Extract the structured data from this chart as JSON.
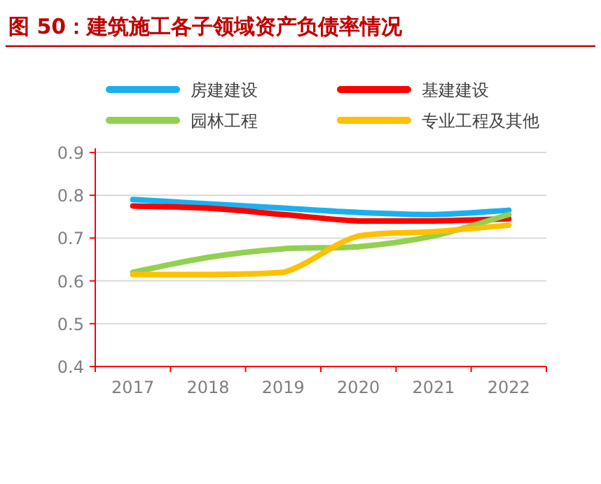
{
  "chart_data": {
    "type": "line",
    "title": "图 50：建筑施工各子领域资产负债率情况",
    "categories": [
      "2017",
      "2018",
      "2019",
      "2020",
      "2021",
      "2022"
    ],
    "series": [
      {
        "name": "房建建设",
        "color": "#1ab0f0",
        "values": [
          0.79,
          0.78,
          0.77,
          0.76,
          0.755,
          0.765
        ]
      },
      {
        "name": "基建建设",
        "color": "#ff0000",
        "values": [
          0.775,
          0.77,
          0.755,
          0.74,
          0.74,
          0.745
        ]
      },
      {
        "name": "园林工程",
        "color": "#92d050",
        "values": [
          0.62,
          0.655,
          0.675,
          0.68,
          0.705,
          0.755
        ]
      },
      {
        "name": "专业工程及其他",
        "color": "#ffc000",
        "values": [
          0.615,
          0.615,
          0.62,
          0.705,
          0.715,
          0.73
        ]
      }
    ],
    "ylim": [
      0.4,
      0.9
    ],
    "yticks": [
      0.4,
      0.5,
      0.6,
      0.7,
      0.8,
      0.9
    ],
    "grid": "y",
    "legend": "top",
    "marker": "none",
    "line_style": "solid"
  }
}
